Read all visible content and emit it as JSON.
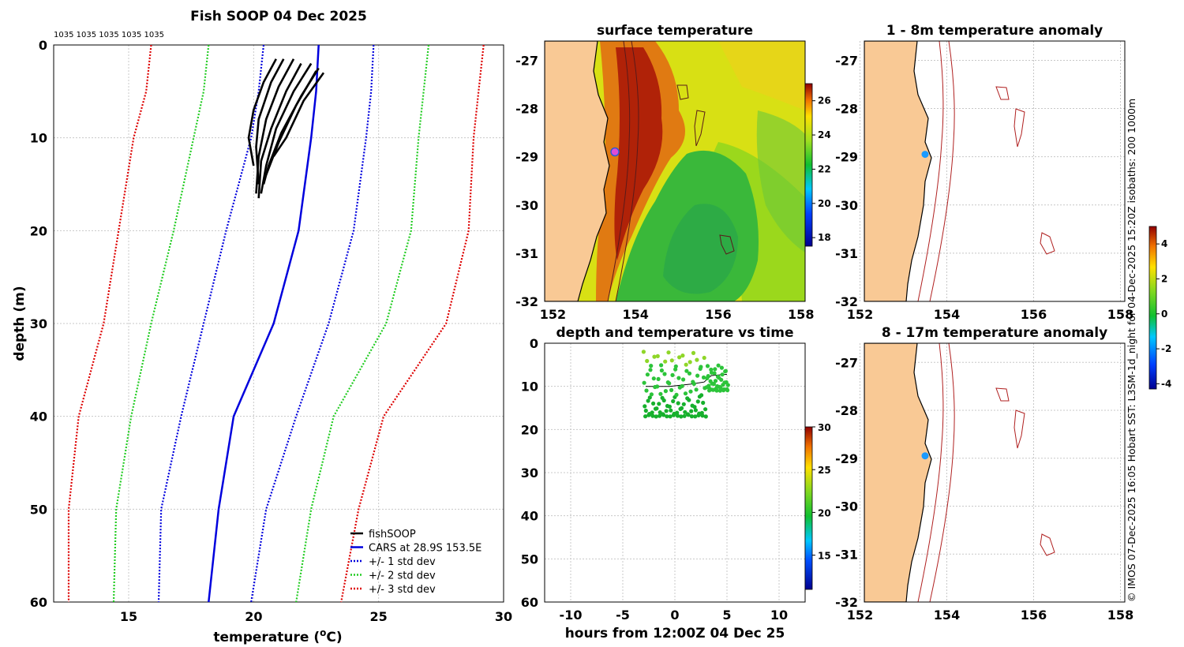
{
  "profile": {
    "title": "Fish SOOP 04 Dec 2025",
    "pressure_labels": "1035 1035 1035 1035 1035",
    "xlabel": "temperature (",
    "xlabel_sup": "o",
    "xlabel_end": "C)",
    "ylabel": "depth (m)"
  },
  "sst": {
    "title": "surface temperature"
  },
  "timeseries": {
    "title": "depth and temperature vs time",
    "xlabel": "hours from 12:00Z 04 Dec 25"
  },
  "anom1": {
    "title": "1 - 8m temperature anomaly"
  },
  "anom2": {
    "title": "8 - 17m temperature anomaly"
  },
  "credit": "© IMOS 07-Dec-2025 16:05 Hobart SST: L3SM-1d_night for 04-Dec-2025 15:20Z isobaths: 200  1000m",
  "colors": {
    "cars": "#0000dd",
    "std1": "#0000dd",
    "std2": "#22cc22",
    "std3": "#dd0000",
    "land": "#f9c995",
    "marker_sst": "#e04bd6",
    "marker_anom": "#1a9aff"
  },
  "chart_data": [
    {
      "type": "line",
      "name": "profile",
      "xlim": [
        12,
        30
      ],
      "ylim": [
        0,
        60
      ],
      "xticks": [
        15,
        20,
        25,
        30
      ],
      "yticks": [
        0,
        10,
        20,
        30,
        40,
        50,
        60
      ],
      "depth": [
        0,
        5,
        10,
        20,
        30,
        40,
        50,
        60
      ],
      "series": [
        {
          "name": "CARS at 28.9S 153.5E",
          "style": "solid",
          "color": "#0000dd",
          "temp": [
            22.6,
            22.5,
            22.3,
            21.8,
            20.8,
            19.2,
            18.6,
            18.2
          ]
        },
        {
          "name": "+/- 1 std dev",
          "style": "dotted",
          "color": "#0000dd",
          "temp": [
            20.4,
            20.2,
            19.9,
            18.9,
            18.0,
            17.1,
            16.3,
            16.2
          ]
        },
        {
          "name": "+/- 1 std dev",
          "style": "dotted",
          "color": "#0000dd",
          "temp": [
            24.8,
            24.7,
            24.5,
            24.0,
            23.0,
            21.7,
            20.5,
            19.9
          ]
        },
        {
          "name": "+/- 2 std dev",
          "style": "dotted",
          "color": "#22cc22",
          "temp": [
            18.2,
            18.0,
            17.6,
            16.8,
            15.9,
            15.1,
            14.5,
            14.4
          ]
        },
        {
          "name": "+/- 2 std dev",
          "style": "dotted",
          "color": "#22cc22",
          "temp": [
            27.0,
            26.8,
            26.6,
            26.3,
            25.3,
            23.2,
            22.3,
            21.7
          ]
        },
        {
          "name": "+/- 3 std dev",
          "style": "dotted",
          "color": "#dd0000",
          "temp": [
            15.9,
            15.7,
            15.2,
            14.6,
            14.0,
            13.0,
            12.6,
            12.6
          ]
        },
        {
          "name": "+/- 3 std dev",
          "style": "dotted",
          "color": "#dd0000",
          "temp": [
            29.2,
            29.0,
            28.8,
            28.6,
            27.7,
            25.2,
            24.2,
            23.5
          ]
        }
      ],
      "casts": [
        [
          [
            20.9,
            1.5
          ],
          [
            20.4,
            4
          ],
          [
            20.0,
            7
          ],
          [
            19.8,
            10
          ],
          [
            20.0,
            13
          ]
        ],
        [
          [
            21.2,
            1.5
          ],
          [
            20.7,
            4
          ],
          [
            20.2,
            8
          ],
          [
            20.1,
            11
          ],
          [
            20.2,
            15
          ]
        ],
        [
          [
            21.6,
            1.5
          ],
          [
            21.0,
            4.5
          ],
          [
            20.5,
            8
          ],
          [
            20.2,
            12
          ],
          [
            20.1,
            16
          ]
        ],
        [
          [
            21.9,
            2
          ],
          [
            21.3,
            5
          ],
          [
            20.7,
            9
          ],
          [
            20.3,
            12.5
          ],
          [
            20.2,
            16.5
          ]
        ],
        [
          [
            22.3,
            2
          ],
          [
            21.6,
            5
          ],
          [
            20.9,
            9
          ],
          [
            20.5,
            13
          ],
          [
            20.3,
            16
          ]
        ],
        [
          [
            22.6,
            2.5
          ],
          [
            21.9,
            5.5
          ],
          [
            21.1,
            9.5
          ],
          [
            20.6,
            13
          ],
          [
            20.4,
            15
          ]
        ],
        [
          [
            22.8,
            3
          ],
          [
            22.0,
            6
          ],
          [
            21.3,
            10
          ],
          [
            20.8,
            12
          ]
        ],
        [
          [
            22.5,
            2.8
          ],
          [
            21.7,
            6.5
          ],
          [
            21.0,
            10.5
          ],
          [
            20.5,
            14
          ]
        ]
      ],
      "legend": [
        "fishSOOP",
        "CARS at 28.9S 153.5E",
        "+/- 1 std dev",
        "+/- 2 std dev",
        "+/- 3 std dev"
      ]
    },
    {
      "type": "heatmap",
      "name": "surface temperature",
      "xlim": [
        151.8,
        158.1
      ],
      "ylim": [
        -32,
        -26.6
      ],
      "xticks": [
        152,
        154,
        156,
        158
      ],
      "yticks": [
        -27,
        -28,
        -29,
        -30,
        -31,
        -32
      ],
      "colorbar": {
        "min": 17.5,
        "max": 27,
        "ticks": [
          18,
          20,
          22,
          24,
          26
        ]
      },
      "station": {
        "lon": 153.5,
        "lat": -28.9
      }
    },
    {
      "type": "scatter",
      "name": "depth and temperature vs time",
      "xlim": [
        -12.5,
        12.5
      ],
      "ylim": [
        0,
        60
      ],
      "xticks": [
        -10,
        -5,
        0,
        5,
        10
      ],
      "yticks": [
        0,
        10,
        20,
        30,
        40,
        50,
        60
      ],
      "colorbar": {
        "min": 11,
        "max": 30,
        "ticks": [
          15,
          20,
          25,
          30
        ]
      },
      "t_range": [
        -3.0,
        5.1
      ],
      "depth_range": [
        2,
        17
      ],
      "temp_typical": 21
    },
    {
      "type": "heatmap",
      "name": "1 - 8m temperature anomaly",
      "xlim": [
        152.1,
        158.1
      ],
      "ylim": [
        -32,
        -26.6
      ],
      "xticks": [
        152,
        154,
        156,
        158
      ],
      "yticks": [
        -27,
        -28,
        -29,
        -30,
        -31,
        -32
      ],
      "station": {
        "lon": 153.5,
        "lat": -28.95
      }
    },
    {
      "type": "heatmap",
      "name": "8 - 17m temperature anomaly",
      "xlim": [
        152.1,
        158.1
      ],
      "ylim": [
        -32,
        -26.6
      ],
      "xticks": [
        152,
        154,
        156,
        158
      ],
      "yticks": [
        -27,
        -28,
        -29,
        -30,
        -31,
        -32
      ],
      "station": {
        "lon": 153.5,
        "lat": -28.95
      },
      "colorbar": {
        "min": -4.3,
        "max": 5,
        "ticks": [
          -4,
          -2,
          0,
          2,
          4
        ]
      }
    }
  ]
}
